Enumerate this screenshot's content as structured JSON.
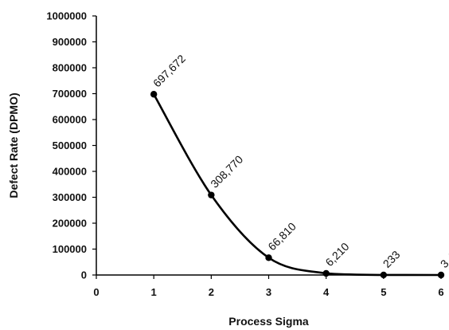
{
  "chart_data": {
    "type": "line",
    "title": "",
    "xlabel": "Process Sigma",
    "ylabel": "Defect Rate (DPMO)",
    "xlim": [
      0,
      6
    ],
    "ylim": [
      0,
      1000000
    ],
    "x_ticks": [
      0,
      1,
      2,
      3,
      4,
      5,
      6
    ],
    "x_tick_labels": [
      "0",
      "1",
      "2",
      "3",
      "4",
      "5",
      "6"
    ],
    "y_ticks": [
      0,
      100000,
      200000,
      300000,
      400000,
      500000,
      600000,
      700000,
      800000,
      900000,
      1000000
    ],
    "y_tick_labels": [
      "0",
      "100000",
      "200000",
      "300000",
      "400000",
      "500000",
      "600000",
      "700000",
      "800000",
      "900000",
      "1000000"
    ],
    "grid": false,
    "legend": "none",
    "series": [
      {
        "x": [
          1,
          2,
          3,
          4,
          5,
          6
        ],
        "y": [
          697672,
          308770,
          66810,
          6210,
          233,
          3.4
        ],
        "labels": [
          "697,672",
          "308,770",
          "66,810",
          "6,210",
          "233",
          "3.4"
        ]
      }
    ],
    "colors": {
      "line": "#000000",
      "marker": "#000000",
      "axis": "#000000"
    }
  }
}
